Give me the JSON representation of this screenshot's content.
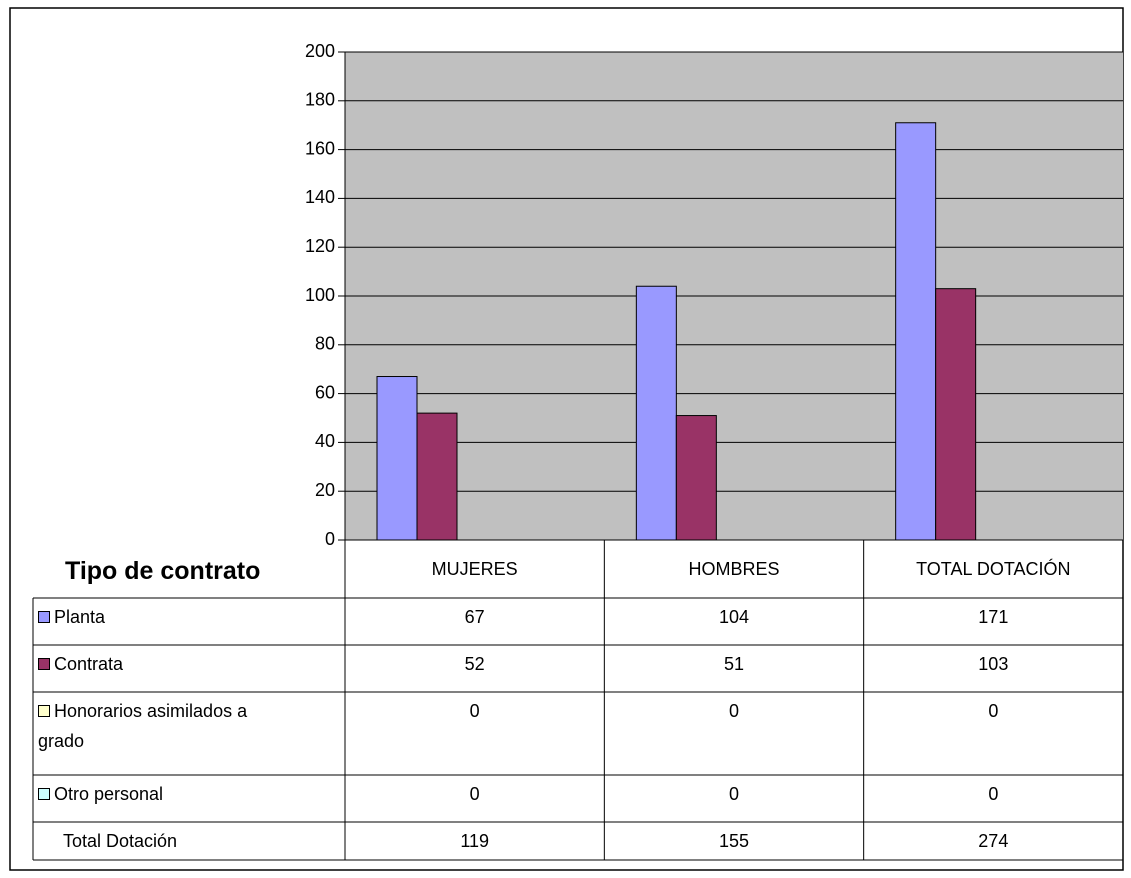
{
  "chart_data": {
    "type": "bar",
    "table_title": "Tipo de contrato",
    "categories": [
      "MUJERES",
      "HOMBRES",
      "TOTAL DOTACIÓN"
    ],
    "series": [
      {
        "name": "Planta",
        "color": "#9999ff",
        "values": [
          67,
          104,
          171
        ]
      },
      {
        "name": "Contrata",
        "color": "#993366",
        "values": [
          52,
          51,
          103
        ]
      },
      {
        "name": "Honorarios asimilados a grado",
        "color": "#ffffcc",
        "values": [
          0,
          0,
          0
        ]
      },
      {
        "name": "Otro personal",
        "color": "#ccffff",
        "values": [
          0,
          0,
          0
        ]
      }
    ],
    "total": {
      "name": "Total Dotación",
      "values": [
        119,
        155,
        274
      ]
    },
    "ylim": [
      0,
      200
    ],
    "yticks": [
      0,
      20,
      40,
      60,
      80,
      100,
      120,
      140,
      160,
      180,
      200
    ],
    "grid": true,
    "plot_background": "#c0c0c0"
  }
}
